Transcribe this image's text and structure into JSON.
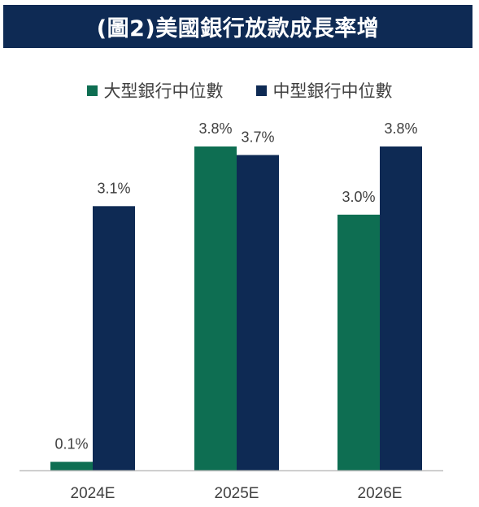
{
  "title": "(圖2)美國銀行放款成長率增",
  "colors": {
    "title_bg": "#0e2a54",
    "large_bank": "#0e6e52",
    "mid_bank": "#0e2a54",
    "axis": "#bfbfbf",
    "text": "#404040"
  },
  "chart_data": {
    "type": "bar",
    "title": "(圖2)美國銀行放款成長率增",
    "categories": [
      "2024E",
      "2025E",
      "2026E"
    ],
    "series": [
      {
        "name": "大型銀行中位數",
        "values": [
          0.1,
          3.8,
          3.0
        ],
        "labels": [
          "0.1%",
          "3.8%",
          "3.0%"
        ],
        "color": "#0e6e52"
      },
      {
        "name": "中型銀行中位數",
        "values": [
          3.1,
          3.7,
          3.8
        ],
        "labels": [
          "3.1%",
          "3.7%",
          "3.8%"
        ],
        "color": "#0e2a54"
      }
    ],
    "ylim": [
      0,
      3.8
    ],
    "grid": false,
    "legend_position": "top"
  }
}
